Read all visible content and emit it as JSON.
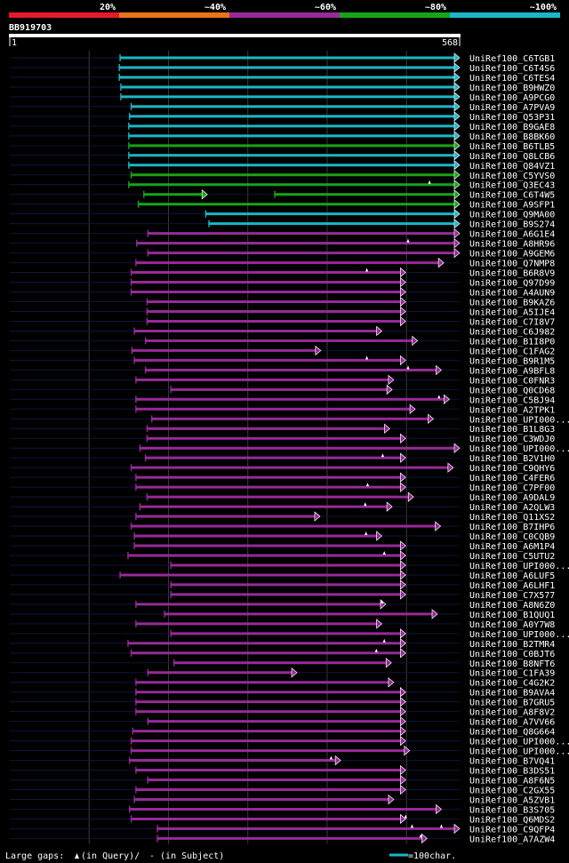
{
  "chart_data": {
    "type": "alignment",
    "title": "BB919703",
    "query_length": 568,
    "axis": {
      "start_label": "1",
      "end_label": "568",
      "min": 1,
      "max": 568
    },
    "identity_legend": [
      {
        "label": "20%",
        "color": "#e8192c"
      },
      {
        "label": "~40%",
        "color": "#e8741c"
      },
      {
        "label": "~60%",
        "color": "#972a99"
      },
      {
        "label": "~80%",
        "color": "#18a418"
      },
      {
        "label": "~100%",
        "color": "#1bb7c6"
      }
    ],
    "scale_label": "=100char.",
    "gaps_note": {
      "prefix": "Large gaps:",
      "query_part": "(in Query)/",
      "subject_part": "- (in Subject)"
    },
    "hits": [
      {
        "id": "UniRef100_C6TGB1",
        "color": "#1bb7c6",
        "start": 140,
        "end": 568,
        "ins": []
      },
      {
        "id": "UniRef100_C6T4S6",
        "color": "#1bb7c6",
        "start": 139,
        "end": 568,
        "ins": []
      },
      {
        "id": "UniRef100_C6TES4",
        "color": "#1bb7c6",
        "start": 139,
        "end": 568,
        "ins": []
      },
      {
        "id": "UniRef100_B9HWZ0",
        "color": "#1bb7c6",
        "start": 141,
        "end": 568,
        "ins": []
      },
      {
        "id": "UniRef100_A9PCG0",
        "color": "#1bb7c6",
        "start": 141,
        "end": 568,
        "ins": []
      },
      {
        "id": "UniRef100_A7PVA9",
        "color": "#1bb7c6",
        "start": 154,
        "end": 568,
        "ins": []
      },
      {
        "id": "UniRef100_Q53P31",
        "color": "#1bb7c6",
        "start": 152,
        "end": 568,
        "ins": []
      },
      {
        "id": "UniRef100_B9GAE8",
        "color": "#1bb7c6",
        "start": 151,
        "end": 568,
        "ins": []
      },
      {
        "id": "UniRef100_B8BK60",
        "color": "#1bb7c6",
        "start": 151,
        "end": 568,
        "ins": []
      },
      {
        "id": "UniRef100_B6TLB5",
        "color": "#18a418",
        "start": 151,
        "end": 568,
        "ins": []
      },
      {
        "id": "UniRef100_Q8LCB6",
        "color": "#1bb7c6",
        "start": 151,
        "end": 568,
        "ins": []
      },
      {
        "id": "UniRef100_Q84VZ1",
        "color": "#1bb7c6",
        "start": 151,
        "end": 568,
        "ins": []
      },
      {
        "id": "UniRef100_C5YVS0",
        "color": "#18a418",
        "start": 154,
        "end": 568,
        "ins": []
      },
      {
        "id": "UniRef100_Q3EC43",
        "color": "#18a418",
        "start": 151,
        "end": 568,
        "ins": [
          530
        ]
      },
      {
        "id": "UniRef100_C6T4W5",
        "color": "#18a418",
        "start": 170,
        "end": 568,
        "ins": [],
        "segments": [
          [
            170,
            250
          ],
          [
            335,
            568
          ]
        ]
      },
      {
        "id": "UniRef100_A9SFP1",
        "color": "#18a418",
        "start": 163,
        "end": 568,
        "ins": []
      },
      {
        "id": "UniRef100_Q9MA00",
        "color": "#1bb7c6",
        "start": 248,
        "end": 568,
        "ins": []
      },
      {
        "id": "UniRef100_B9S274",
        "color": "#1bb7c6",
        "start": 252,
        "end": 568,
        "ins": []
      },
      {
        "id": "UniRef100_A6G1E4",
        "color": "#972a99",
        "start": 175,
        "end": 568,
        "ins": []
      },
      {
        "id": "UniRef100_A8HR96",
        "color": "#972a99",
        "start": 161,
        "end": 568,
        "ins": [
          503
        ]
      },
      {
        "id": "UniRef100_A9GEM6",
        "color": "#972a99",
        "start": 175,
        "end": 568,
        "ins": []
      },
      {
        "id": "UniRef100_Q7NMP8",
        "color": "#972a99",
        "start": 160,
        "end": 548,
        "ins": []
      },
      {
        "id": "UniRef100_B6R8V9",
        "color": "#972a99",
        "start": 154,
        "end": 500,
        "ins": [
          451
        ]
      },
      {
        "id": "UniRef100_Q97D99",
        "color": "#972a99",
        "start": 154,
        "end": 500,
        "ins": []
      },
      {
        "id": "UniRef100_A4AUN9",
        "color": "#972a99",
        "start": 154,
        "end": 500,
        "ins": []
      },
      {
        "id": "UniRef100_B9KAZ6",
        "color": "#972a99",
        "start": 174,
        "end": 500,
        "ins": []
      },
      {
        "id": "UniRef100_A5IJE4",
        "color": "#972a99",
        "start": 174,
        "end": 500,
        "ins": []
      },
      {
        "id": "UniRef100_C7I8V7",
        "color": "#972a99",
        "start": 174,
        "end": 500,
        "ins": []
      },
      {
        "id": "UniRef100_C6J982",
        "color": "#972a99",
        "start": 158,
        "end": 470,
        "ins": []
      },
      {
        "id": "UniRef100_B1I8P0",
        "color": "#972a99",
        "start": 172,
        "end": 515,
        "ins": []
      },
      {
        "id": "UniRef100_C1FAG2",
        "color": "#972a99",
        "start": 155,
        "end": 393,
        "ins": []
      },
      {
        "id": "UniRef100_B9R1M5",
        "color": "#972a99",
        "start": 158,
        "end": 500,
        "ins": [
          451
        ]
      },
      {
        "id": "UniRef100_A9BFL8",
        "color": "#972a99",
        "start": 172,
        "end": 545,
        "ins": [
          503
        ]
      },
      {
        "id": "UniRef100_C0FNR3",
        "color": "#972a99",
        "start": 160,
        "end": 485,
        "ins": []
      },
      {
        "id": "UniRef100_Q0CD68",
        "color": "#972a99",
        "start": 204,
        "end": 483,
        "ins": []
      },
      {
        "id": "UniRef100_C5BJ94",
        "color": "#972a99",
        "start": 160,
        "end": 555,
        "ins": [
          542
        ]
      },
      {
        "id": "UniRef100_A2TPK1",
        "color": "#972a99",
        "start": 160,
        "end": 512,
        "ins": []
      },
      {
        "id": "UniRef100_UPI000...",
        "color": "#972a99",
        "start": 180,
        "end": 535,
        "ins": []
      },
      {
        "id": "UniRef100_B1L8G3",
        "color": "#972a99",
        "start": 174,
        "end": 480,
        "ins": []
      },
      {
        "id": "UniRef100_C3WDJ0",
        "color": "#972a99",
        "start": 174,
        "end": 500,
        "ins": []
      },
      {
        "id": "UniRef100_UPI000...",
        "color": "#972a99",
        "start": 165,
        "end": 568,
        "ins": []
      },
      {
        "id": "UniRef100_B2V1H0",
        "color": "#972a99",
        "start": 172,
        "end": 500,
        "ins": [
          471
        ]
      },
      {
        "id": "UniRef100_C9QHY6",
        "color": "#972a99",
        "start": 154,
        "end": 560,
        "ins": []
      },
      {
        "id": "UniRef100_C4FER6",
        "color": "#972a99",
        "start": 160,
        "end": 500,
        "ins": []
      },
      {
        "id": "UniRef100_C7PF00",
        "color": "#972a99",
        "start": 160,
        "end": 500,
        "ins": [
          452
        ]
      },
      {
        "id": "UniRef100_A9DAL9",
        "color": "#972a99",
        "start": 174,
        "end": 510,
        "ins": []
      },
      {
        "id": "UniRef100_A2QLW3",
        "color": "#972a99",
        "start": 165,
        "end": 483,
        "ins": [
          449
        ]
      },
      {
        "id": "UniRef100_Q11XS2",
        "color": "#972a99",
        "start": 160,
        "end": 392,
        "ins": []
      },
      {
        "id": "UniRef100_B7IHP6",
        "color": "#972a99",
        "start": 154,
        "end": 544,
        "ins": []
      },
      {
        "id": "UniRef100_C0CQB9",
        "color": "#972a99",
        "start": 158,
        "end": 470,
        "ins": [
          450
        ]
      },
      {
        "id": "UniRef100_A6M1P4",
        "color": "#972a99",
        "start": 158,
        "end": 500,
        "ins": []
      },
      {
        "id": "UniRef100_C5UTU2",
        "color": "#972a99",
        "start": 150,
        "end": 500,
        "ins": [
          473
        ]
      },
      {
        "id": "UniRef100_UPI000...",
        "color": "#972a99",
        "start": 204,
        "end": 500,
        "ins": []
      },
      {
        "id": "UniRef100_A6LUF5",
        "color": "#972a99",
        "start": 140,
        "end": 500,
        "ins": []
      },
      {
        "id": "UniRef100_A6LHF1",
        "color": "#972a99",
        "start": 204,
        "end": 500,
        "ins": []
      },
      {
        "id": "UniRef100_C7X577",
        "color": "#972a99",
        "start": 204,
        "end": 500,
        "ins": []
      },
      {
        "id": "UniRef100_A8N6Z0",
        "color": "#972a99",
        "start": 160,
        "end": 475,
        "ins": [
          470
        ]
      },
      {
        "id": "UniRef100_B1QUQ1",
        "color": "#972a99",
        "start": 196,
        "end": 540,
        "ins": []
      },
      {
        "id": "UniRef100_A0Y7W8",
        "color": "#972a99",
        "start": 160,
        "end": 470,
        "ins": []
      },
      {
        "id": "UniRef100_UPI000...",
        "color": "#972a99",
        "start": 204,
        "end": 500,
        "ins": []
      },
      {
        "id": "UniRef100_B2TMR4",
        "color": "#972a99",
        "start": 150,
        "end": 500,
        "ins": [
          473
        ]
      },
      {
        "id": "UniRef100_C0BJT6",
        "color": "#972a99",
        "start": 154,
        "end": 500,
        "ins": [
          463
        ]
      },
      {
        "id": "UniRef100_B8NFT6",
        "color": "#972a99",
        "start": 208,
        "end": 482,
        "ins": []
      },
      {
        "id": "UniRef100_C1FA39",
        "color": "#972a99",
        "start": 175,
        "end": 363,
        "ins": []
      },
      {
        "id": "UniRef100_C4G2K2",
        "color": "#972a99",
        "start": 160,
        "end": 485,
        "ins": []
      },
      {
        "id": "UniRef100_B9AVA4",
        "color": "#972a99",
        "start": 160,
        "end": 500,
        "ins": []
      },
      {
        "id": "UniRef100_B7GRU5",
        "color": "#972a99",
        "start": 160,
        "end": 500,
        "ins": []
      },
      {
        "id": "UniRef100_A8F8V2",
        "color": "#972a99",
        "start": 160,
        "end": 500,
        "ins": []
      },
      {
        "id": "UniRef100_A7VV66",
        "color": "#972a99",
        "start": 175,
        "end": 500,
        "ins": []
      },
      {
        "id": "UniRef100_Q8G664",
        "color": "#972a99",
        "start": 156,
        "end": 500,
        "ins": []
      },
      {
        "id": "UniRef100_UPI000...",
        "color": "#972a99",
        "start": 154,
        "end": 500,
        "ins": []
      },
      {
        "id": "UniRef100_UPI000...",
        "color": "#972a99",
        "start": 154,
        "end": 505,
        "ins": []
      },
      {
        "id": "UniRef100_B7VQ41",
        "color": "#972a99",
        "start": 152,
        "end": 418,
        "ins": [
          406
        ]
      },
      {
        "id": "UniRef100_B3DS51",
        "color": "#972a99",
        "start": 160,
        "end": 500,
        "ins": []
      },
      {
        "id": "UniRef100_A8F6N5",
        "color": "#972a99",
        "start": 175,
        "end": 500,
        "ins": []
      },
      {
        "id": "UniRef100_C2GX55",
        "color": "#972a99",
        "start": 160,
        "end": 500,
        "ins": []
      },
      {
        "id": "UniRef100_A5ZVB1",
        "color": "#972a99",
        "start": 158,
        "end": 485,
        "ins": []
      },
      {
        "id": "UniRef100_B3S705",
        "color": "#972a99",
        "start": 152,
        "end": 545,
        "ins": []
      },
      {
        "id": "UniRef100_Q6MDS2",
        "color": "#972a99",
        "start": 154,
        "end": 500,
        "ins": [
          500
        ]
      },
      {
        "id": "UniRef100_C9QFP4",
        "color": "#972a99",
        "start": 187,
        "end": 568,
        "ins": [
          508,
          545
        ]
      },
      {
        "id": "UniRef100_A7AZW4",
        "color": "#972a99",
        "start": 187,
        "end": 527,
        "ins": [
          519
        ]
      }
    ]
  }
}
